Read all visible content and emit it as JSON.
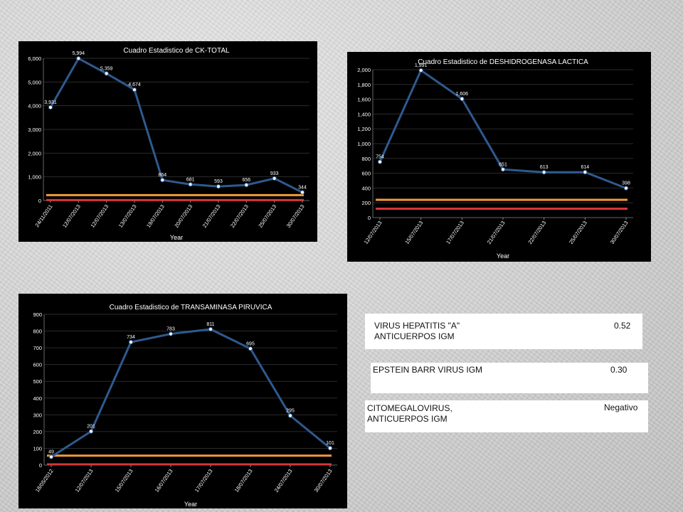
{
  "chart_data": [
    {
      "id": "ck",
      "type": "line",
      "title": "Cuadro Estadistico de CK-TOTAL",
      "xlabel": "Year",
      "ylabel": "",
      "ylim": [
        0,
        6000
      ],
      "yticks": [
        0,
        1000,
        2000,
        3000,
        4000,
        5000,
        6000
      ],
      "ytick_labels": [
        "0",
        "1,000",
        "2,000",
        "3,000",
        "4,000",
        "5,000",
        "6,000"
      ],
      "categories": [
        "24/11/2011",
        "12/07/2013",
        "12/07/2013",
        "13/07/2013",
        "19/07/2013",
        "20/07/2013",
        "21/07/2013",
        "22/07/2013",
        "25/07/2013",
        "30/07/2013"
      ],
      "values": [
        3931,
        5994,
        5359,
        4674,
        864,
        681,
        593,
        656,
        933,
        344
      ],
      "value_labels": [
        "3,931",
        "5,994",
        "5,359",
        "4,674",
        "864",
        "681",
        "593",
        "656",
        "933",
        "344"
      ],
      "reference_lines": [
        {
          "value": 230,
          "color": "#f39a3a"
        },
        {
          "value": 20,
          "color": "#d4373a"
        }
      ],
      "grid": true,
      "line_color": "#2e5a8f"
    },
    {
      "id": "dhl",
      "type": "line",
      "title": "Cuadro Estadistico de DESHIDROGENASA LACTICA",
      "xlabel": "Year",
      "ylabel": "",
      "ylim": [
        0,
        2000
      ],
      "yticks": [
        0,
        200,
        400,
        600,
        800,
        1000,
        1200,
        1400,
        1600,
        1800,
        2000
      ],
      "ytick_labels": [
        "0",
        "200",
        "400",
        "600",
        "800",
        "1,000",
        "1,200",
        "1,400",
        "1,600",
        "1,800",
        "2,000"
      ],
      "categories": [
        "12/07/2013",
        "15/07/2013",
        "17/07/2013",
        "21/07/2013",
        "22/07/2013",
        "25/07/2013",
        "30/07/2013"
      ],
      "values": [
        754,
        1991,
        1606,
        651,
        613,
        614,
        398
      ],
      "value_labels": [
        "754",
        "1,991",
        "1,606",
        "651",
        "613",
        "614",
        "398"
      ],
      "reference_lines": [
        {
          "value": 240,
          "color": "#f39a3a"
        },
        {
          "value": 120,
          "color": "#d4373a"
        }
      ],
      "grid": true,
      "line_color": "#2e5a8f"
    },
    {
      "id": "tp",
      "type": "line",
      "title": "Cuadro Estadistico de TRANSAMINASA PIRUVICA",
      "xlabel": "Year",
      "ylabel": "",
      "ylim": [
        0,
        900
      ],
      "yticks": [
        0,
        100,
        200,
        300,
        400,
        500,
        600,
        700,
        800,
        900
      ],
      "ytick_labels": [
        "0",
        "100",
        "200",
        "300",
        "400",
        "500",
        "600",
        "700",
        "800",
        "900"
      ],
      "categories": [
        "18/05/2012",
        "12/07/2013",
        "15/07/2013",
        "16/07/2013",
        "17/07/2013",
        "18/07/2013",
        "24/07/2013",
        "30/07/2013"
      ],
      "values": [
        49,
        201,
        734,
        783,
        811,
        695,
        295,
        101
      ],
      "value_labels": [
        "49",
        "201",
        "734",
        "783",
        "811",
        "695",
        "295",
        "101"
      ],
      "reference_lines": [
        {
          "value": 56,
          "color": "#f39a3a"
        },
        {
          "value": 4,
          "color": "#d4373a"
        }
      ],
      "grid": true,
      "line_color": "#2e5a8f"
    }
  ],
  "lab_results": {
    "hepatitis_a": {
      "name": "VIRUS HEPATITIS \"A\"\nANTICUERPOS IGM",
      "value": "0.52"
    },
    "ebv": {
      "name": "EPSTEIN BARR VIRUS  IGM",
      "value": "0.30"
    },
    "cmv": {
      "name": "CITOMEGALOVIRUS,\nANTICUERPOS IGM",
      "value": "Negativo"
    }
  }
}
